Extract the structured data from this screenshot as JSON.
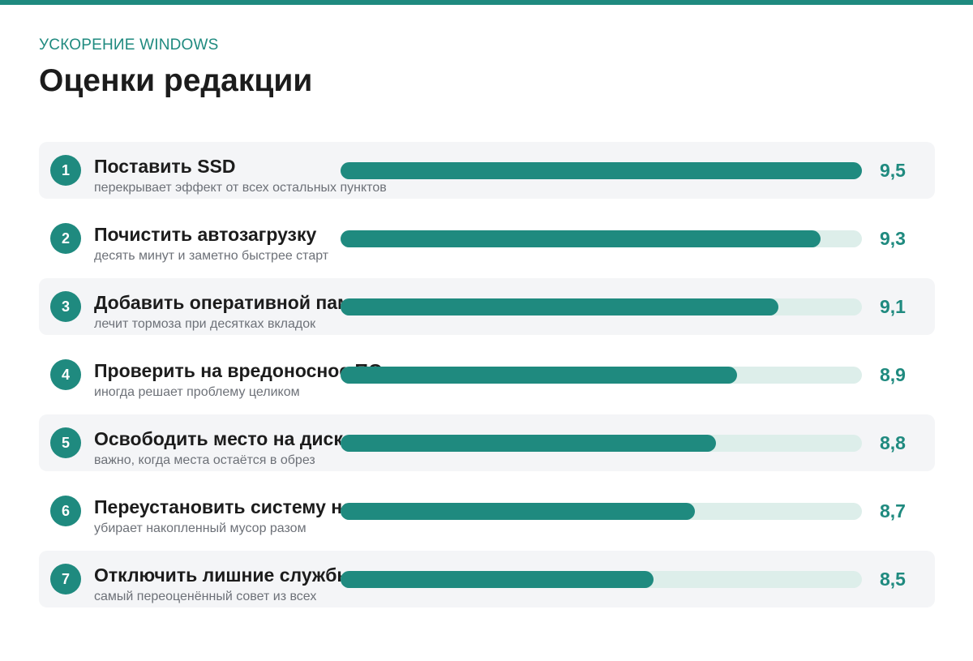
{
  "header": {
    "eyebrow": "УСКОРЕНИЕ WINDOWS",
    "title": "Оценки редакции"
  },
  "colors": {
    "accent": "#1f8a7f",
    "track": "#ddeeea",
    "row_background": "#f4f5f7"
  },
  "chart_data": {
    "type": "bar",
    "orientation": "horizontal",
    "title": "Оценки редакции",
    "categories": [
      "Поставить SSD",
      "Почистить автозагрузку",
      "Добавить оперативной памяти",
      "Проверить на вредоносное ПО",
      "Освободить место на диске",
      "Переустановить систему начисто",
      "Отключить лишние службы"
    ],
    "values": [
      9.5,
      9.3,
      9.1,
      8.9,
      8.8,
      8.7,
      8.5
    ],
    "xlim": [
      7,
      9.5
    ],
    "rows": [
      {
        "rank": "1",
        "title": "Поставить SSD",
        "subtitle": "перекрывает эффект от всех остальных пунктов",
        "score_label": "9,5",
        "value": 9.5
      },
      {
        "rank": "2",
        "title": "Почистить автозагрузку",
        "subtitle": "десять минут и заметно быстрее старт",
        "score_label": "9,3",
        "value": 9.3
      },
      {
        "rank": "3",
        "title": "Добавить оперативной памяти",
        "subtitle": "лечит тормоза при десятках вкладок",
        "score_label": "9,1",
        "value": 9.1
      },
      {
        "rank": "4",
        "title": "Проверить на вредоносное ПО",
        "subtitle": "иногда решает проблему целиком",
        "score_label": "8,9",
        "value": 8.9
      },
      {
        "rank": "5",
        "title": "Освободить место на диске",
        "subtitle": "важно, когда места остаётся в обрез",
        "score_label": "8,8",
        "value": 8.8
      },
      {
        "rank": "6",
        "title": "Переустановить систему начисто",
        "subtitle": "убирает накопленный мусор разом",
        "score_label": "8,7",
        "value": 8.7
      },
      {
        "rank": "7",
        "title": "Отключить лишние службы",
        "subtitle": "самый переоценённый совет из всех",
        "score_label": "8,5",
        "value": 8.5
      }
    ]
  }
}
